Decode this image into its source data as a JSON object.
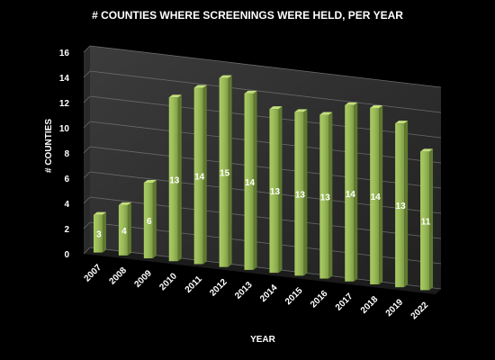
{
  "chart_data": {
    "type": "bar",
    "title": "# COUNTIES WHERE SCREENINGS WERE HELD, PER YEAR",
    "xlabel": "YEAR",
    "ylabel": "# COUNTIES",
    "categories": [
      "2007",
      "2008",
      "2009",
      "2010",
      "2011",
      "2012",
      "2013",
      "2014",
      "2015",
      "2016",
      "2017",
      "2018",
      "2019",
      "2022"
    ],
    "values": [
      3,
      4,
      6,
      13,
      14,
      15,
      14,
      13,
      13,
      13,
      14,
      14,
      13,
      11
    ],
    "data_labels": [
      "3",
      "4",
      "6",
      "13",
      "14",
      "15",
      "14",
      "13",
      "13",
      "13",
      "14",
      "14",
      "13",
      "11"
    ],
    "ylim": [
      0,
      16
    ],
    "yticks": [
      "0",
      "2",
      "4",
      "6",
      "8",
      "10",
      "12",
      "14",
      "16"
    ],
    "grid": true,
    "legend": "none",
    "bar_color": "#9bbb59",
    "background": "#000000"
  }
}
